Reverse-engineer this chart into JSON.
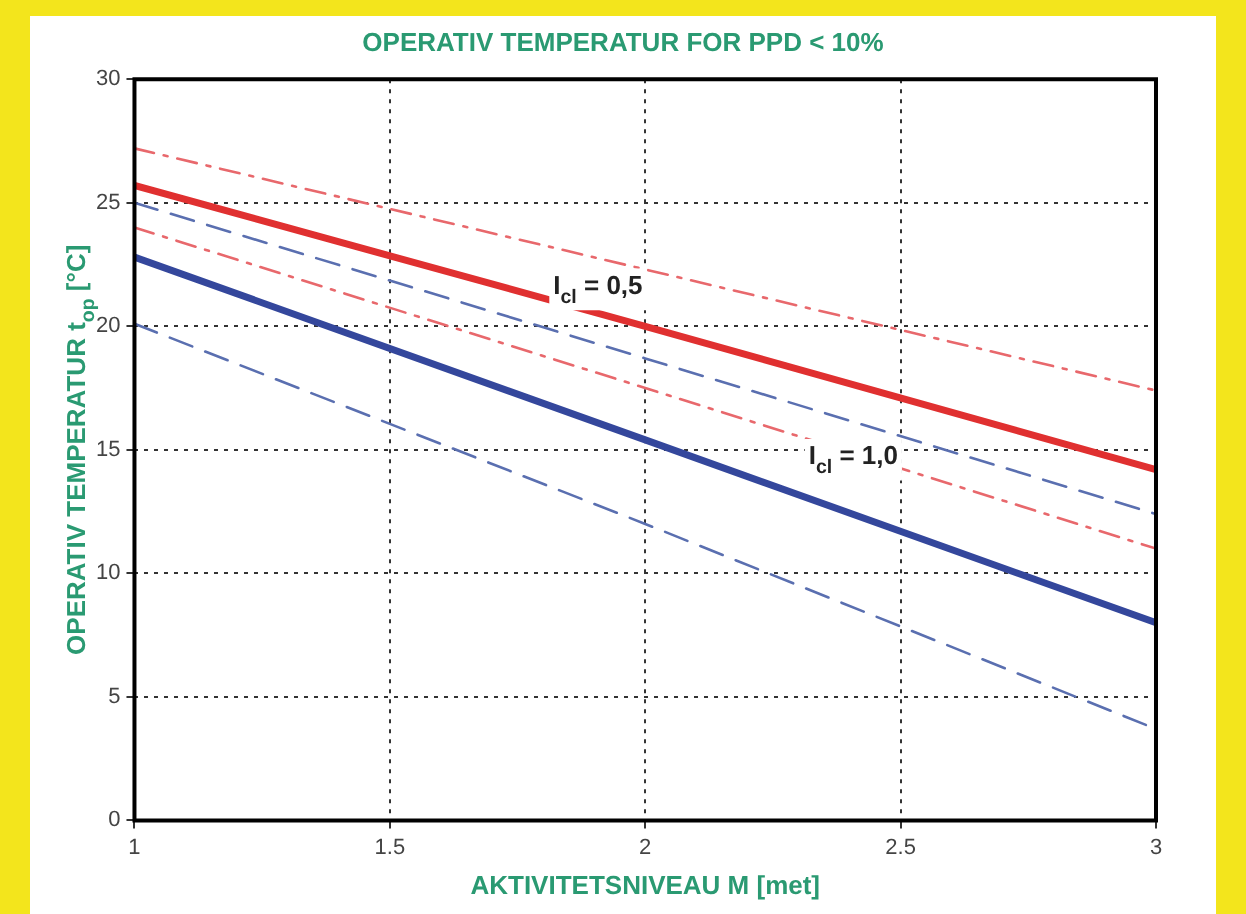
{
  "chart_data": {
    "type": "line",
    "title": "OPERATIV TEMPERATUR FOR PPD < 10%",
    "xlabel": "AKTIVITETSNIVEAU M [met]",
    "ylabel": "OPERATIV TEMPERATUR t$_{op}$ [°C]",
    "x": [
      1,
      2,
      3
    ],
    "series": [
      {
        "color": "#e8686c",
        "line_style": "dashdot",
        "values": [
          27.2,
          22.3,
          17.4
        ]
      },
      {
        "color": "#e03030",
        "line_style": "solid",
        "values": [
          25.7,
          20.0,
          14.2
        ]
      },
      {
        "color": "#e8686c",
        "line_style": "dashdot",
        "values": [
          24.0,
          17.5,
          11.0
        ]
      },
      {
        "color": "#5a6fb0",
        "line_style": "dashed",
        "values": [
          25.0,
          18.7,
          12.4
        ]
      },
      {
        "color": "#34479c",
        "line_style": "solid",
        "values": [
          22.8,
          15.4,
          8.0
        ]
      },
      {
        "color": "#5a6fb0",
        "line_style": "dashed",
        "values": [
          20.1,
          12.0,
          3.7
        ]
      }
    ],
    "annotations": [
      "I$_{cl}$ = 0,5",
      "I$_{cl}$ = 1,0"
    ],
    "xlim": [
      1,
      3
    ],
    "xticks": [
      1,
      1.5,
      2,
      2.5,
      3
    ],
    "ylim": [
      0,
      30
    ],
    "yticks": [
      0,
      5,
      10,
      15,
      20,
      25,
      30
    ],
    "grid": true,
    "legend": false,
    "marker": "none"
  }
}
